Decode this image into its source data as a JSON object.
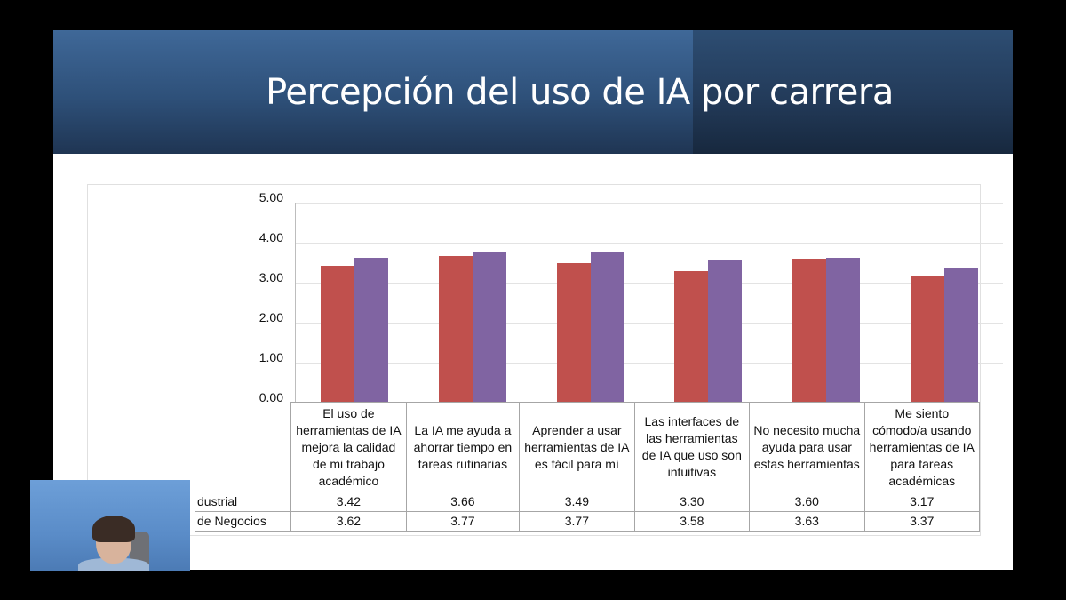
{
  "slide": {
    "title": "Percepción del uso de IA por carrera"
  },
  "chart_data": {
    "type": "bar",
    "title": "Percepción del uso de IA por carrera",
    "xlabel": "",
    "ylabel": "",
    "ylim": [
      0,
      5
    ],
    "yticks": [
      "5.00",
      "4.00",
      "3.00",
      "2.00",
      "1.00",
      "0.00"
    ],
    "grid": true,
    "legend_position": "data-table",
    "categories": [
      "El uso de herramientas de IA mejora la calidad de mi trabajo académico",
      "La IA me ayuda a ahorrar tiempo en tareas rutinarias",
      "Aprender a usar herramientas de IA es fácil para mí",
      "Las interfaces de las herramientas de IA que uso son intuitivas",
      "No necesito mucha ayuda para usar estas herramientas",
      "Me siento cómodo/a usando herramientas de IA para tareas académicas"
    ],
    "series": [
      {
        "name": "…dustrial",
        "color": "#c0504d",
        "values": [
          3.42,
          3.66,
          3.49,
          3.3,
          3.6,
          3.17
        ],
        "labels": [
          "3.42",
          "3.66",
          "3.49",
          "3.30",
          "3.60",
          "3.17"
        ]
      },
      {
        "name": "…de Negocios",
        "color": "#8064a2",
        "values": [
          3.62,
          3.77,
          3.77,
          3.58,
          3.63,
          3.37
        ],
        "labels": [
          "3.62",
          "3.77",
          "3.77",
          "3.58",
          "3.63",
          "3.37"
        ]
      }
    ]
  },
  "table": {
    "row_labels": [
      "dustrial",
      "de Negocios"
    ]
  }
}
